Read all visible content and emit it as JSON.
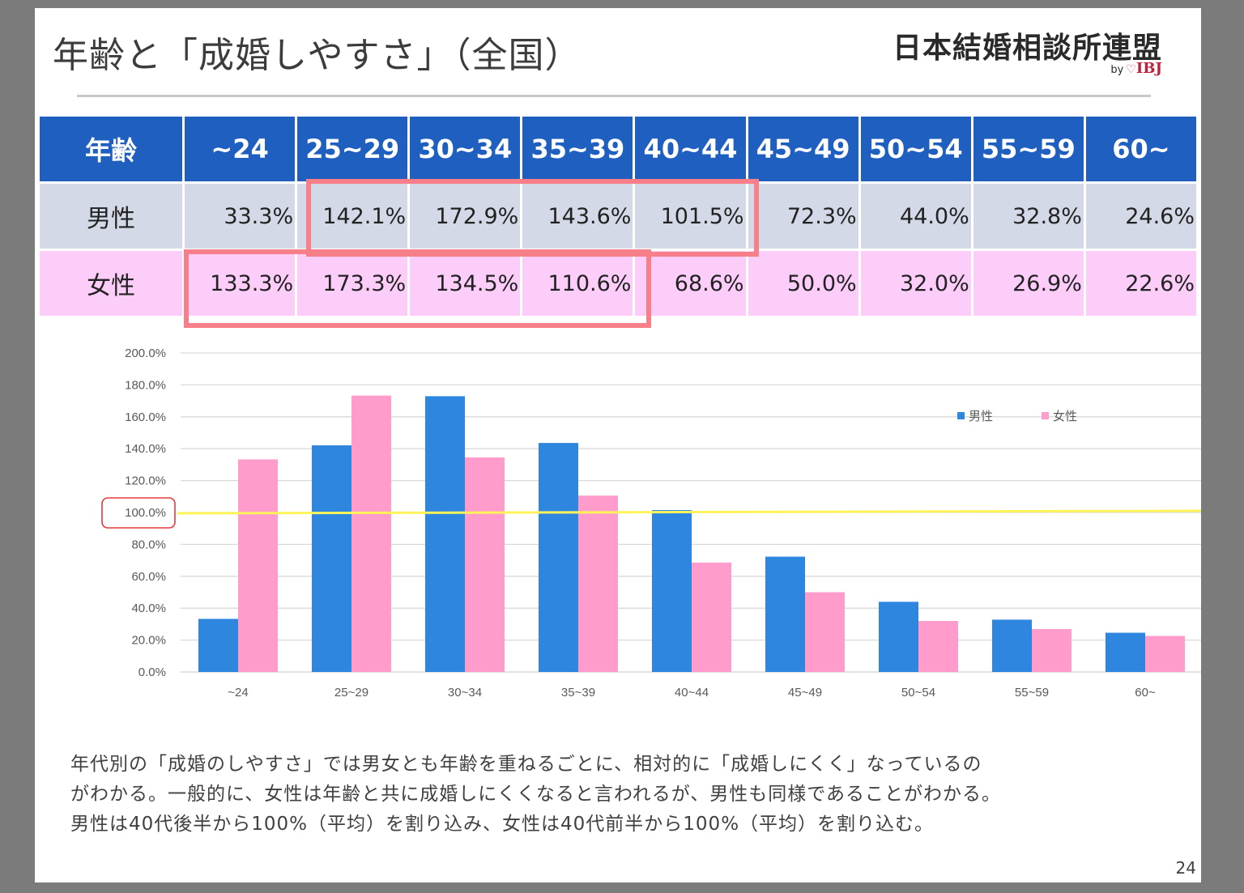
{
  "title": "年齢と「成婚しやすさ」（全国）",
  "logo": {
    "main": "日本結婚相談所連盟",
    "by": "by",
    "brand": "IBJ"
  },
  "table": {
    "header_label": "年齢",
    "age_groups": [
      "~24",
      "25~29",
      "30~34",
      "35~39",
      "40~44",
      "45~49",
      "50~54",
      "55~59",
      "60~"
    ],
    "rows": [
      {
        "label": "男性",
        "values": [
          "33.3%",
          "142.1%",
          "172.9%",
          "143.6%",
          "101.5%",
          "72.3%",
          "44.0%",
          "32.8%",
          "24.6%"
        ]
      },
      {
        "label": "女性",
        "values": [
          "133.3%",
          "173.3%",
          "134.5%",
          "110.6%",
          "68.6%",
          "50.0%",
          "32.0%",
          "26.9%",
          "22.6%"
        ]
      }
    ]
  },
  "chart_data": {
    "type": "bar",
    "categories": [
      "~24",
      "25~29",
      "30~34",
      "35~39",
      "40~44",
      "45~49",
      "50~54",
      "55~59",
      "60~"
    ],
    "series": [
      {
        "name": "男性",
        "color": "#2e86de",
        "values": [
          33.3,
          142.1,
          172.9,
          143.6,
          101.5,
          72.3,
          44.0,
          32.8,
          24.6
        ]
      },
      {
        "name": "女性",
        "color": "#ff9ccc",
        "values": [
          133.3,
          173.3,
          134.5,
          110.6,
          68.6,
          50.0,
          32.0,
          26.9,
          22.6
        ]
      }
    ],
    "ylim": [
      0,
      200
    ],
    "yticks": [
      "0.0%",
      "20.0%",
      "40.0%",
      "60.0%",
      "80.0%",
      "100.0%",
      "120.0%",
      "140.0%",
      "160.0%",
      "180.0%",
      "200.0%"
    ],
    "reference_line": {
      "value": 100,
      "color": "#fff35a"
    },
    "highlighted_tick": "100.0%",
    "grid": true,
    "legend_position": "top-right"
  },
  "description": [
    "年代別の「成婚のしやすさ」では男女とも年齢を重ねるごとに、相対的に「成婚しにくく」なっているの",
    "がわかる。一般的に、女性は年齢と共に成婚しにくくなると言われるが、男性も同様であることがわかる。",
    "男性は40代後半から100%（平均）を割り込み、女性は40代前半から100%（平均）を割り込む。"
  ],
  "page_number": "24"
}
